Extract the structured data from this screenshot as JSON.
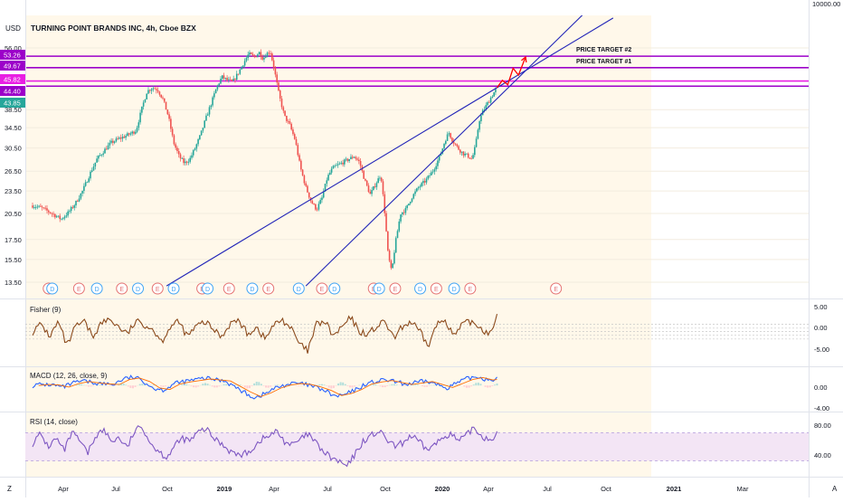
{
  "header": {
    "currency": "USD",
    "title": "TURNING POINT BRANDS INC, 4h, Cboe BZX"
  },
  "chart_data": {
    "type": "candlestick",
    "symbol_title": "TURNING POINT BRANDS INC, 4h, Cboe BZX",
    "x_ticks": [
      "Apr",
      "Jul",
      "Oct",
      "2019",
      "Apr",
      "Jul",
      "Oct",
      "2020",
      "Apr",
      "Jul",
      "Oct",
      "2021",
      "Mar"
    ],
    "price_axis": {
      "scale": "log",
      "top_label": "10000.00",
      "tick_labels": [
        "56.00",
        "38.50",
        "34.50",
        "30.50",
        "26.50",
        "23.50",
        "20.50",
        "17.50",
        "15.50",
        "13.50"
      ],
      "price_badges": [
        "53.26",
        "49.67",
        "45.82",
        "44.40",
        "43.85"
      ]
    },
    "annotations": [
      "PRICE TARGET #2",
      "PRICE TARGET #1"
    ],
    "horizontal_levels": [
      53.26,
      49.67,
      45.82,
      44.4
    ],
    "events": {
      "markers": [
        {
          "kind": "E",
          "month_index": 0.9
        },
        {
          "kind": "D",
          "month_index": 1.1
        },
        {
          "kind": "E",
          "month_index": 2.6
        },
        {
          "kind": "D",
          "month_index": 3.6
        },
        {
          "kind": "E",
          "month_index": 5.0
        },
        {
          "kind": "D",
          "month_index": 5.9
        },
        {
          "kind": "E",
          "month_index": 7.0
        },
        {
          "kind": "D",
          "month_index": 7.9
        },
        {
          "kind": "E",
          "month_index": 9.5
        },
        {
          "kind": "D",
          "month_index": 9.8
        },
        {
          "kind": "E",
          "month_index": 11.0
        },
        {
          "kind": "D",
          "month_index": 12.3
        },
        {
          "kind": "E",
          "month_index": 13.2
        },
        {
          "kind": "D",
          "month_index": 14.9
        },
        {
          "kind": "E",
          "month_index": 16.2
        },
        {
          "kind": "D",
          "month_index": 16.9
        },
        {
          "kind": "E",
          "month_index": 19.1
        },
        {
          "kind": "D",
          "month_index": 19.4
        },
        {
          "kind": "E",
          "month_index": 20.3
        },
        {
          "kind": "D",
          "month_index": 21.7
        },
        {
          "kind": "E",
          "month_index": 22.6
        },
        {
          "kind": "D",
          "month_index": 23.6
        },
        {
          "kind": "E",
          "month_index": 24.5
        },
        {
          "kind": "E",
          "month_index": 29.3
        }
      ]
    },
    "price_path": [
      [
        0,
        21.5
      ],
      [
        0.5,
        21.2
      ],
      [
        1.0,
        20.6
      ],
      [
        1.6,
        19.8
      ],
      [
        2.0,
        20.6
      ],
      [
        2.4,
        21.8
      ],
      [
        2.8,
        23.5
      ],
      [
        3.2,
        26.0
      ],
      [
        3.6,
        28.5
      ],
      [
        4.0,
        30.0
      ],
      [
        4.4,
        31.5
      ],
      [
        4.8,
        32.2
      ],
      [
        5.2,
        32.8
      ],
      [
        5.6,
        33.5
      ],
      [
        5.8,
        34.0
      ],
      [
        6.1,
        38.5
      ],
      [
        6.4,
        43.0
      ],
      [
        6.7,
        44.0
      ],
      [
        7.0,
        43.5
      ],
      [
        7.3,
        41.0
      ],
      [
        7.6,
        37.0
      ],
      [
        7.9,
        31.5
      ],
      [
        8.2,
        29.0
      ],
      [
        8.5,
        27.8
      ],
      [
        8.8,
        28.5
      ],
      [
        9.1,
        30.5
      ],
      [
        9.4,
        33.0
      ],
      [
        9.7,
        36.5
      ],
      [
        10.0,
        40.0
      ],
      [
        10.3,
        44.0
      ],
      [
        10.6,
        47.0
      ],
      [
        10.9,
        46.0
      ],
      [
        11.2,
        45.5
      ],
      [
        11.5,
        48.0
      ],
      [
        11.8,
        51.0
      ],
      [
        12.1,
        54.0
      ],
      [
        12.4,
        53.0
      ],
      [
        12.7,
        54.5
      ],
      [
        12.9,
        52.5
      ],
      [
        13.1,
        54.0
      ],
      [
        13.3,
        55.0
      ],
      [
        13.5,
        50.0
      ],
      [
        13.8,
        42.0
      ],
      [
        14.1,
        37.0
      ],
      [
        14.4,
        35.0
      ],
      [
        14.7,
        32.0
      ],
      [
        15.0,
        27.0
      ],
      [
        15.3,
        24.0
      ],
      [
        15.6,
        22.0
      ],
      [
        15.9,
        21.0
      ],
      [
        16.2,
        22.5
      ],
      [
        16.5,
        25.5
      ],
      [
        16.8,
        27.0
      ],
      [
        17.1,
        27.5
      ],
      [
        17.4,
        28.0
      ],
      [
        17.7,
        28.5
      ],
      [
        18.0,
        29.0
      ],
      [
        18.3,
        28.0
      ],
      [
        18.6,
        25.0
      ],
      [
        18.9,
        23.0
      ],
      [
        19.2,
        24.5
      ],
      [
        19.5,
        26.0
      ],
      [
        19.7,
        21.0
      ],
      [
        19.9,
        16.0
      ],
      [
        20.1,
        14.3
      ],
      [
        20.3,
        17.0
      ],
      [
        20.6,
        20.5
      ],
      [
        20.9,
        21.0
      ],
      [
        21.2,
        22.5
      ],
      [
        21.6,
        24.0
      ],
      [
        22.0,
        25.0
      ],
      [
        22.4,
        26.5
      ],
      [
        22.8,
        29.0
      ],
      [
        23.1,
        32.0
      ],
      [
        23.3,
        33.5
      ],
      [
        23.5,
        32.0
      ],
      [
        23.8,
        30.5
      ],
      [
        24.1,
        29.5
      ],
      [
        24.4,
        29.0
      ],
      [
        24.6,
        28.5
      ],
      [
        24.8,
        31.0
      ],
      [
        25.0,
        36.0
      ],
      [
        25.2,
        38.0
      ],
      [
        25.4,
        39.5
      ],
      [
        25.6,
        41.0
      ],
      [
        25.8,
        42.5
      ],
      [
        26.0,
        44.0
      ]
    ],
    "projection_path": [
      [
        26.0,
        44.0
      ],
      [
        26.3,
        46.0
      ],
      [
        26.6,
        44.8
      ],
      [
        26.9,
        49.5
      ],
      [
        27.2,
        47.5
      ],
      [
        27.6,
        53.0
      ]
    ],
    "trendlines": [
      {
        "from": [
          7.5,
          13.2
        ],
        "to": [
          26.0,
          44.0
        ],
        "extend_to": 32.5
      },
      {
        "from": [
          15.3,
          13.2
        ],
        "to": [
          26.8,
          44.8
        ],
        "extend_to": 32.0
      }
    ],
    "panels": [
      {
        "name": "Fisher (9)",
        "type": "line",
        "right_labels": [
          "5.00",
          "0.00",
          "-5.00"
        ],
        "values": [
          0,
          1.5,
          -1,
          2,
          -3,
          1,
          2,
          -1,
          1.8,
          2.5,
          1,
          -0.5,
          2,
          1.5,
          0.5,
          -2,
          1,
          2,
          -1,
          1,
          2,
          0.5,
          -1,
          1.8,
          2.2,
          -0.5,
          1,
          -1.5,
          1.2,
          2.5,
          0.8,
          -2.5,
          -4,
          1.5,
          2,
          -1,
          1,
          2.8,
          0,
          -0.5,
          1,
          2,
          -1.5,
          1,
          2,
          0,
          -3,
          1.5,
          2.5,
          -1,
          1.5,
          2,
          1,
          -0.5,
          3
        ]
      },
      {
        "name": "MACD (12, 26, close, 9)",
        "type": "line",
        "right_labels": [
          "0.00",
          "-4.00"
        ],
        "values": [
          0,
          0.2,
          0.1,
          -0.3,
          0.4,
          0.8,
          0.5,
          0.3,
          0.2,
          1.2,
          1.5,
          0.8,
          -0.5,
          -0.8,
          0.3,
          0.7,
          1.0,
          1.3,
          1.1,
          0.9,
          -0.2,
          -1.3,
          -2.2,
          -1.5,
          -0.5,
          0.1,
          0.4,
          0.2,
          -0.3,
          -1.0,
          -2.0,
          -1.6,
          -0.8,
          0.3,
          0.7,
          1.0,
          0.6,
          0.2,
          0.5,
          0.8,
          0.2,
          -0.4,
          0.4,
          1.2,
          1.6,
          1.1,
          1.2
        ]
      },
      {
        "name": "RSI (14, close)",
        "type": "line",
        "right_labels": [
          "80.00",
          "40.00"
        ],
        "band": [
          30,
          70
        ],
        "values": [
          55,
          68,
          50,
          62,
          44,
          70,
          58,
          40,
          66,
          74,
          58,
          63,
          48,
          73,
          78,
          55,
          44,
          35,
          50,
          62,
          58,
          70,
          76,
          62,
          55,
          45,
          38,
          40,
          48,
          60,
          65,
          72,
          58,
          52,
          60,
          68,
          55,
          42,
          34,
          28,
          22,
          40,
          58,
          66,
          72,
          60,
          50,
          55,
          66,
          58,
          46,
          52,
          62,
          70,
          58,
          64,
          78,
          66,
          60,
          68
        ]
      }
    ]
  },
  "colors": {
    "candle_up": "#26a69a",
    "candle_down": "#ef5350",
    "trendline": "#2124b8",
    "level": "#9c00c9",
    "level_pink": "#e91ee3",
    "projection": "#ff0000",
    "fisher": "#8b4a1c",
    "macd": "#2962ff",
    "signal": "#ff6d00",
    "rsi": "#7e57c2",
    "earnings": "#e57373",
    "dividend": "#42a5f5",
    "session_bg": "#fff8ea"
  },
  "footer": {
    "left": "Z",
    "right": "A"
  }
}
